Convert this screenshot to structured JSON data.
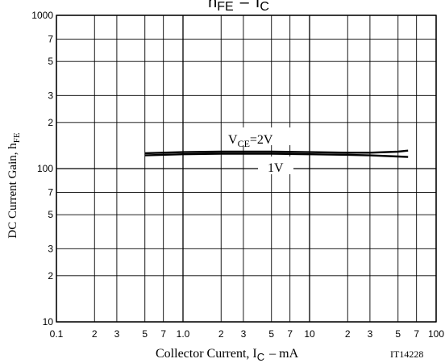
{
  "chart_data": {
    "type": "line",
    "title": {
      "main": "h",
      "sub1": "FE",
      "dash": "–",
      "main2": "I",
      "sub2": "C"
    },
    "xlabel": {
      "main": "Collector Current, I",
      "sub": "C",
      "tail": "–  mA"
    },
    "ylabel": {
      "main": "DC Current Gain, h",
      "sub": "FE"
    },
    "code": "IT14228",
    "x_scale": "log",
    "y_scale": "log",
    "xlim": [
      0.1,
      100
    ],
    "ylim": [
      10,
      1000
    ],
    "grid": true,
    "x_ticks": [
      {
        "v": 0.1,
        "t": "0.1"
      },
      {
        "v": 0.2,
        "t": "2"
      },
      {
        "v": 0.3,
        "t": "3"
      },
      {
        "v": 0.5,
        "t": "5"
      },
      {
        "v": 0.7,
        "t": "7"
      },
      {
        "v": 1,
        "t": "1.0"
      },
      {
        "v": 2,
        "t": "2"
      },
      {
        "v": 3,
        "t": "3"
      },
      {
        "v": 5,
        "t": "5"
      },
      {
        "v": 7,
        "t": "7"
      },
      {
        "v": 10,
        "t": "10"
      },
      {
        "v": 20,
        "t": "2"
      },
      {
        "v": 30,
        "t": "3"
      },
      {
        "v": 50,
        "t": "5"
      },
      {
        "v": 70,
        "t": "7"
      },
      {
        "v": 100,
        "t": "100"
      }
    ],
    "y_ticks": [
      {
        "v": 10,
        "t": "10"
      },
      {
        "v": 20,
        "t": "2"
      },
      {
        "v": 30,
        "t": "3"
      },
      {
        "v": 50,
        "t": "5"
      },
      {
        "v": 70,
        "t": "7"
      },
      {
        "v": 100,
        "t": "100"
      },
      {
        "v": 200,
        "t": "2"
      },
      {
        "v": 300,
        "t": "3"
      },
      {
        "v": 500,
        "t": "5"
      },
      {
        "v": 700,
        "t": "7"
      },
      {
        "v": 1000,
        "t": "1000"
      }
    ],
    "series": [
      {
        "name": "V_CE=2V",
        "x": [
          0.5,
          1,
          2,
          5,
          10,
          20,
          30,
          50,
          60
        ],
        "y": [
          126,
          128,
          129,
          129,
          128,
          127,
          127,
          129,
          131
        ]
      },
      {
        "name": "1V",
        "x": [
          0.5,
          1,
          2,
          5,
          10,
          20,
          30,
          50,
          60
        ],
        "y": [
          122,
          124,
          125,
          125,
          124,
          123,
          122,
          120,
          119
        ]
      }
    ],
    "annotations": [
      {
        "main": "V",
        "sub": "CE",
        "tail": "=2V"
      },
      {
        "text": "1V"
      }
    ]
  }
}
